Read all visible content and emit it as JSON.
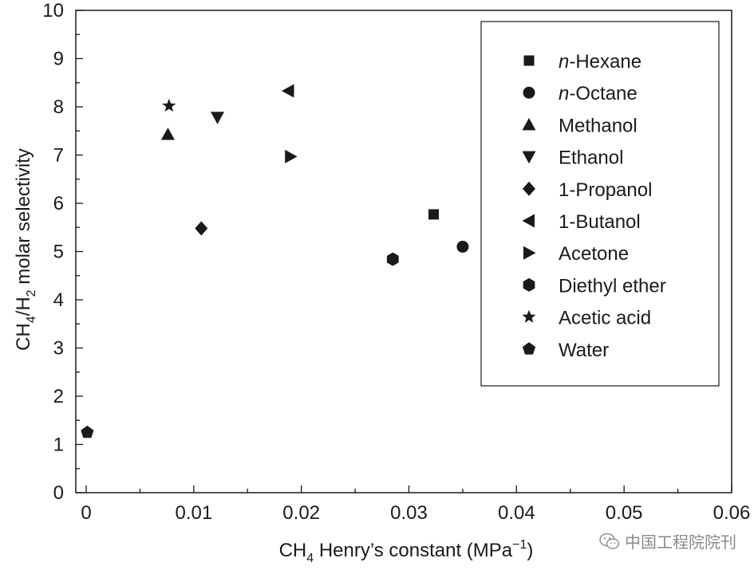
{
  "chart_data": {
    "type": "scatter",
    "title": "",
    "xlabel": {
      "main": "CH",
      "sub": "4",
      "rest": " Henry’s constant (MPa",
      "sup": "−1",
      "close": ")"
    },
    "ylabel": {
      "p1": "CH",
      "s1": "4",
      "p2": "/H",
      "s2": "2",
      "p3": " molar selectivity"
    },
    "xlim": [
      0,
      0.06
    ],
    "ylim": [
      0,
      10
    ],
    "xticks": [
      "0",
      "0.01",
      "0.02",
      "0.03",
      "0.04",
      "0.05",
      "0.06"
    ],
    "xtick_values": [
      0,
      0.01,
      0.02,
      0.03,
      0.04,
      0.05,
      0.06
    ],
    "yticks": [
      "0",
      "1",
      "2",
      "3",
      "4",
      "5",
      "6",
      "7",
      "8",
      "9",
      "10"
    ],
    "ytick_values": [
      0,
      1,
      2,
      3,
      4,
      5,
      6,
      7,
      8,
      9,
      10
    ],
    "legend_position": "top-right",
    "series": [
      {
        "name": "n-Hexane",
        "italic_prefix": "n",
        "rest": "-Hexane",
        "marker": "square",
        "x": 0.0323,
        "y": 5.77
      },
      {
        "name": "n-Octane",
        "italic_prefix": "n",
        "rest": "-Octane",
        "marker": "circle",
        "x": 0.035,
        "y": 5.1
      },
      {
        "name": "Methanol",
        "italic_prefix": "",
        "rest": "Methanol",
        "marker": "triangle-up",
        "x": 0.0076,
        "y": 7.43
      },
      {
        "name": "Ethanol",
        "italic_prefix": "",
        "rest": "Ethanol",
        "marker": "triangle-down",
        "x": 0.0122,
        "y": 7.78
      },
      {
        "name": "1-Propanol",
        "italic_prefix": "",
        "rest": "1-Propanol",
        "marker": "diamond",
        "x": 0.0107,
        "y": 5.48
      },
      {
        "name": "1-Butanol",
        "italic_prefix": "",
        "rest": "1-Butanol",
        "marker": "triangle-left",
        "x": 0.0188,
        "y": 8.33
      },
      {
        "name": "Acetone",
        "italic_prefix": "",
        "rest": "Acetone",
        "marker": "triangle-right",
        "x": 0.019,
        "y": 6.97
      },
      {
        "name": "Diethyl ether",
        "italic_prefix": "",
        "rest": "Diethyl ether",
        "marker": "hexagon",
        "x": 0.0285,
        "y": 4.84
      },
      {
        "name": "Acetic acid",
        "italic_prefix": "",
        "rest": "Acetic acid",
        "marker": "star",
        "x": 0.0077,
        "y": 8.02
      },
      {
        "name": "Water",
        "italic_prefix": "",
        "rest": "Water",
        "marker": "pentagon",
        "x": 0.0001,
        "y": 1.25
      }
    ]
  },
  "watermark": {
    "text": "中国工程院院刊",
    "icon": "wechat-icon"
  }
}
